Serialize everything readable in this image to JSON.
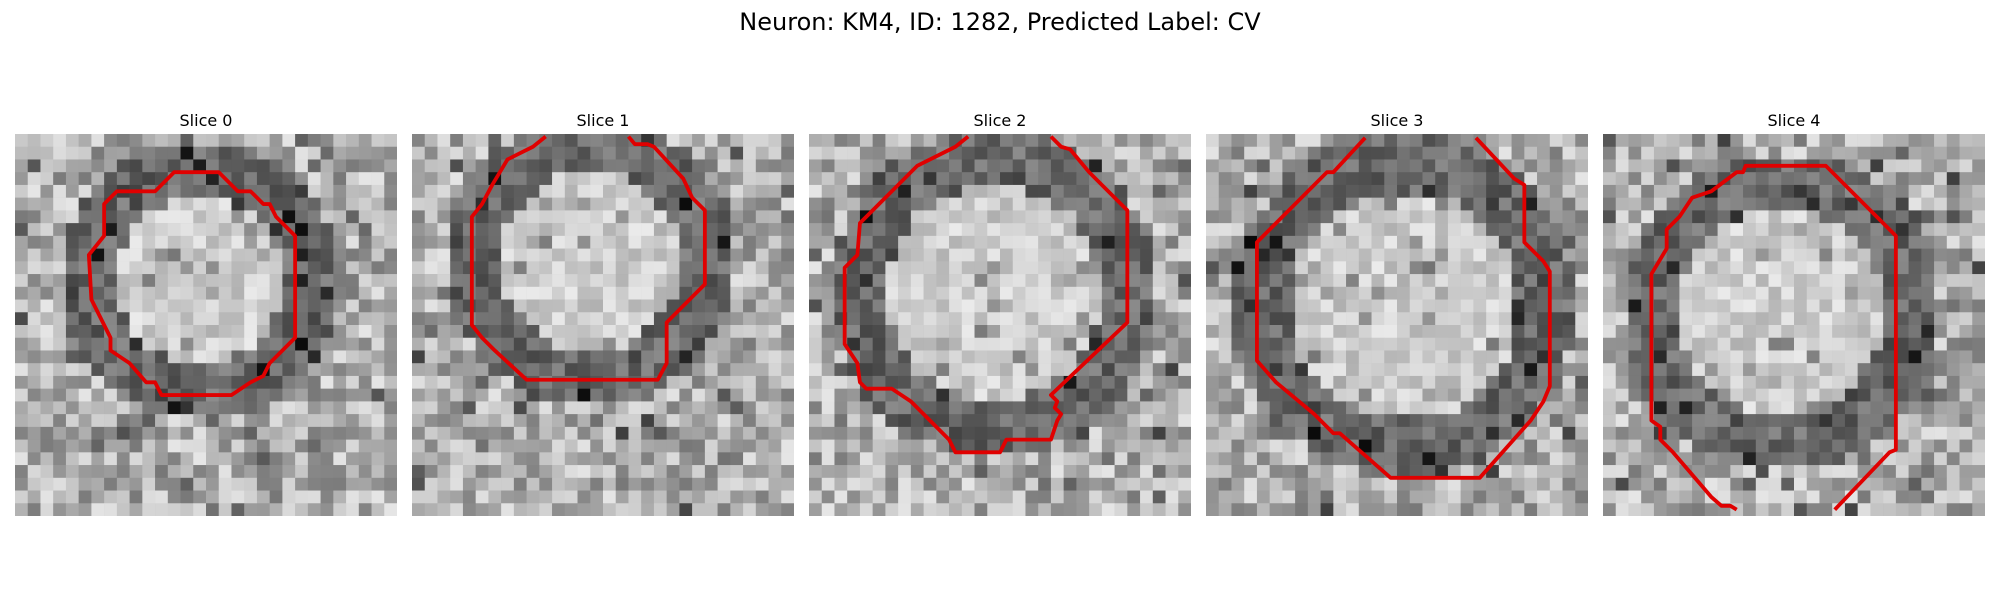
{
  "figure": {
    "title": "Neuron: KM4, ID: 1282, Predicted Label: CV"
  },
  "colors": {
    "background": "#ffffff",
    "contour": "#e00000",
    "colormap": "gray"
  },
  "slices": [
    {
      "label": "Slice 0"
    },
    {
      "label": "Slice 1"
    },
    {
      "label": "Slice 2"
    },
    {
      "label": "Slice 3"
    },
    {
      "label": "Slice 4"
    }
  ]
}
